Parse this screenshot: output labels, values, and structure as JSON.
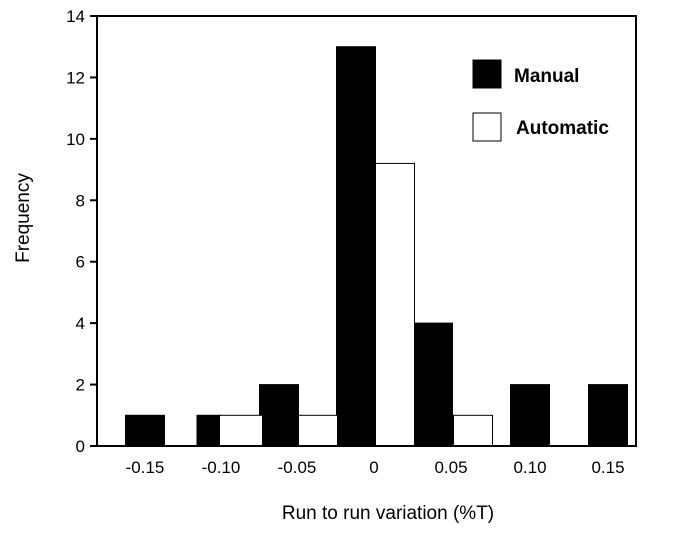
{
  "chart_data": {
    "type": "bar",
    "title": "",
    "xlabel": "Run to run variation (%T)",
    "ylabel": "Frequency",
    "categories": [
      "-0.15",
      "-0.10",
      "-0.05",
      "0",
      "0.05",
      "0.10",
      "0.15"
    ],
    "series": [
      {
        "name": "Manual",
        "values": [
          1,
          1,
          2,
          13,
          4,
          2,
          2
        ],
        "color": "#000000"
      },
      {
        "name": "Automatic",
        "values": [
          0,
          1,
          1,
          9.2,
          1,
          0,
          0
        ],
        "color": "#ffffff"
      }
    ],
    "ylim": [
      0,
      14
    ],
    "yticks": [
      0,
      2,
      4,
      6,
      8,
      10,
      12,
      14
    ],
    "grid": false,
    "legend_position": "top-right"
  }
}
